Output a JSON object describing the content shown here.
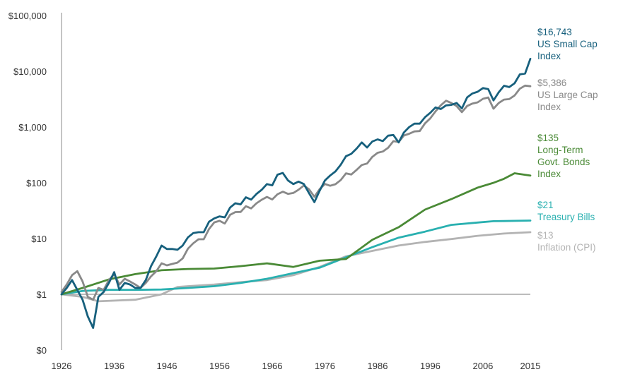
{
  "chart_data": {
    "type": "line",
    "title": "",
    "xlabel": "",
    "ylabel": "",
    "yscale": "log",
    "xlim": [
      1926,
      2015
    ],
    "ylim": [
      0.1,
      100000
    ],
    "grid": false,
    "x_ticks": [
      1926,
      1936,
      1946,
      1956,
      1966,
      1976,
      1986,
      1996,
      2006,
      2015
    ],
    "x_tick_labels": [
      "1926",
      "1936",
      "1946",
      "1956",
      "1966",
      "1976",
      "1986",
      "1996",
      "2006",
      "2015"
    ],
    "y_ticks": [
      0.1,
      1,
      10,
      100,
      1000,
      10000,
      100000
    ],
    "y_tick_labels": [
      "$0",
      "$1",
      "$10",
      "$100",
      "$1,000",
      "$10,000",
      "$100,000"
    ],
    "reference_line": {
      "y": 1,
      "color": "#a6a6a6"
    },
    "series": [
      {
        "name": "US Small Cap Index",
        "end_label": "$16,743",
        "label_lines": [
          "US Small Cap",
          "Index"
        ],
        "color": "#17607d",
        "x": [
          1926,
          1927,
          1928,
          1929,
          1930,
          1931,
          1932,
          1933,
          1934,
          1935,
          1936,
          1937,
          1938,
          1939,
          1940,
          1941,
          1942,
          1943,
          1944,
          1945,
          1946,
          1947,
          1948,
          1949,
          1950,
          1951,
          1952,
          1953,
          1954,
          1955,
          1956,
          1957,
          1958,
          1959,
          1960,
          1961,
          1962,
          1963,
          1964,
          1965,
          1966,
          1967,
          1968,
          1969,
          1970,
          1971,
          1972,
          1973,
          1974,
          1975,
          1976,
          1977,
          1978,
          1979,
          1980,
          1981,
          1982,
          1983,
          1984,
          1985,
          1986,
          1987,
          1988,
          1989,
          1990,
          1991,
          1992,
          1993,
          1994,
          1995,
          1996,
          1997,
          1998,
          1999,
          2000,
          2001,
          2002,
          2003,
          2004,
          2005,
          2006,
          2007,
          2008,
          2009,
          2010,
          2011,
          2012,
          2013,
          2014,
          2015
        ],
        "values": [
          1,
          1.3,
          1.8,
          1.2,
          0.8,
          0.4,
          0.25,
          0.9,
          1.1,
          1.6,
          2.5,
          1.2,
          1.6,
          1.5,
          1.3,
          1.3,
          1.8,
          3.2,
          4.8,
          7.5,
          6.5,
          6.5,
          6.3,
          7.5,
          10.5,
          12.5,
          13,
          13,
          20,
          23,
          25,
          24,
          36,
          43,
          41,
          55,
          50,
          63,
          75,
          95,
          90,
          140,
          150,
          110,
          95,
          105,
          95,
          65,
          45,
          72,
          110,
          135,
          160,
          210,
          300,
          330,
          410,
          530,
          430,
          550,
          600,
          560,
          700,
          720,
          530,
          800,
          1000,
          1150,
          1150,
          1500,
          1800,
          2250,
          2100,
          2450,
          2500,
          2700,
          2150,
          3400,
          4000,
          4300,
          5000,
          4800,
          3000,
          4200,
          5500,
          5200,
          6100,
          8800,
          9100,
          16743
        ]
      },
      {
        "name": "US Large Cap Index",
        "end_label": "$5,386",
        "label_lines": [
          "US Large Cap",
          "Index"
        ],
        "color": "#898989",
        "x": [
          1926,
          1927,
          1928,
          1929,
          1930,
          1931,
          1932,
          1933,
          1934,
          1935,
          1936,
          1937,
          1938,
          1939,
          1940,
          1941,
          1942,
          1943,
          1944,
          1945,
          1946,
          1947,
          1948,
          1949,
          1950,
          1951,
          1952,
          1953,
          1954,
          1955,
          1956,
          1957,
          1958,
          1959,
          1960,
          1961,
          1962,
          1963,
          1964,
          1965,
          1966,
          1967,
          1968,
          1969,
          1970,
          1971,
          1972,
          1973,
          1974,
          1975,
          1976,
          1977,
          1978,
          1979,
          1980,
          1981,
          1982,
          1983,
          1984,
          1985,
          1986,
          1987,
          1988,
          1989,
          1990,
          1991,
          1992,
          1993,
          1994,
          1995,
          1996,
          1997,
          1998,
          1999,
          2000,
          2001,
          2002,
          2003,
          2004,
          2005,
          2006,
          2007,
          2008,
          2009,
          2010,
          2011,
          2012,
          2013,
          2014,
          2015
        ],
        "values": [
          1.1,
          1.5,
          2.2,
          2.6,
          1.7,
          0.9,
          0.8,
          1.3,
          1.2,
          1.8,
          2.3,
          1.5,
          1.9,
          1.7,
          1.5,
          1.3,
          1.6,
          2.1,
          2.6,
          3.6,
          3.3,
          3.5,
          3.7,
          4.4,
          6.6,
          8.2,
          9.7,
          9.7,
          14.8,
          19.5,
          20.8,
          18.6,
          26.6,
          29.8,
          30,
          38,
          34.7,
          42.8,
          49.7,
          55.9,
          50.3,
          62.3,
          69.2,
          63.3,
          65.8,
          75.2,
          89.5,
          76.3,
          56.1,
          77,
          95.3,
          88.5,
          94.3,
          111.6,
          147.6,
          140.6,
          170.1,
          208.5,
          221.3,
          291.7,
          345.4,
          363.8,
          424.3,
          557.8,
          540.2,
          704.7,
          758.2,
          834.7,
          845.9,
          1163.4,
          1430.4,
          1907.5,
          2452.5,
          2969.1,
          2698.7,
          2377.9,
          1852.2,
          2383.5,
          2643.1,
          2772.8,
          3210.7,
          3387,
          2133.7,
          2698.4,
          3104.6,
          3170.1,
          3677.6,
          4868.7,
          5535.9,
          5386
        ]
      },
      {
        "name": "Long-Term Govt. Bonds Index",
        "end_label": "$135",
        "label_lines": [
          "Long-Term",
          "Govt. Bonds",
          "Index"
        ],
        "color": "#4a8a36",
        "x": [
          1926,
          1930,
          1935,
          1940,
          1945,
          1950,
          1955,
          1960,
          1965,
          1970,
          1975,
          1980,
          1985,
          1990,
          1995,
          2000,
          2005,
          2008,
          2010,
          2012,
          2015
        ],
        "values": [
          1,
          1.3,
          1.85,
          2.3,
          2.7,
          2.85,
          2.9,
          3.2,
          3.6,
          3.1,
          4.0,
          4.3,
          9.5,
          16,
          33,
          51,
          82,
          100,
          118,
          148,
          135
        ]
      },
      {
        "name": "Treasury Bills",
        "end_label": "$21",
        "label_lines": [
          "Treasury Bills"
        ],
        "color": "#29b0b0",
        "x": [
          1926,
          1930,
          1935,
          1940,
          1945,
          1950,
          1955,
          1960,
          1965,
          1970,
          1975,
          1980,
          1985,
          1990,
          1995,
          2000,
          2005,
          2008,
          2010,
          2015
        ],
        "values": [
          1,
          1.15,
          1.2,
          1.2,
          1.22,
          1.3,
          1.4,
          1.6,
          1.9,
          2.4,
          3.0,
          4.6,
          7.0,
          10.4,
          13.3,
          17.6,
          19.4,
          20.5,
          20.6,
          21
        ]
      },
      {
        "name": "Inflation (CPI)",
        "end_label": "$13",
        "label_lines": [
          "Inflation (CPI)"
        ],
        "color": "#b3b3b3",
        "x": [
          1926,
          1930,
          1933,
          1940,
          1945,
          1948,
          1950,
          1955,
          1960,
          1965,
          1970,
          1975,
          1980,
          1985,
          1990,
          1995,
          2000,
          2005,
          2010,
          2015
        ],
        "values": [
          1,
          0.9,
          0.75,
          0.8,
          1.0,
          1.35,
          1.4,
          1.5,
          1.65,
          1.8,
          2.2,
          3.1,
          4.8,
          6.0,
          7.5,
          8.7,
          9.8,
          11.2,
          12.3,
          13
        ]
      }
    ]
  }
}
